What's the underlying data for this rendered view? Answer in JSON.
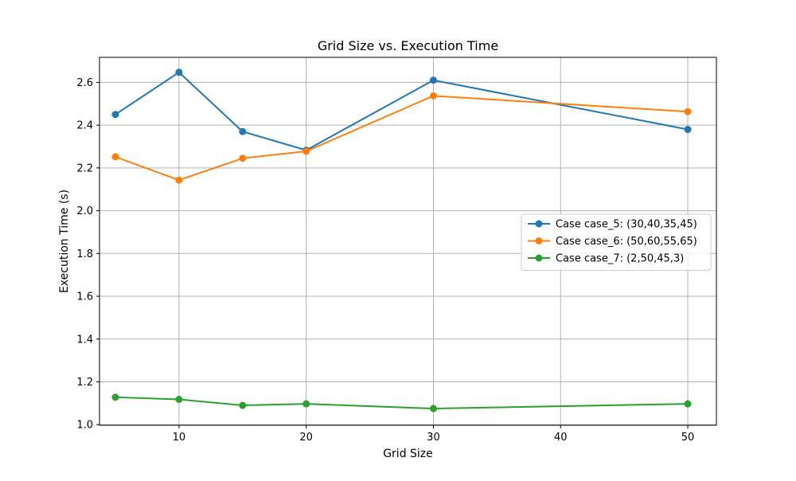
{
  "chart_data": {
    "type": "line",
    "title": "Grid Size vs. Execution Time",
    "xlabel": "Grid Size",
    "ylabel": "Execution Time (s)",
    "x": [
      5,
      10,
      15,
      20,
      30,
      50
    ],
    "xlim": [
      3.75,
      52.25
    ],
    "ylim": [
      0.997,
      2.717
    ],
    "xticks": [
      10,
      20,
      30,
      40,
      50
    ],
    "yticks": [
      1.0,
      1.2,
      1.4,
      1.6,
      1.8,
      2.0,
      2.2,
      2.4,
      2.6
    ],
    "grid": true,
    "legend_position": "center-right",
    "series": [
      {
        "name": "Case case_5: (30,40,35,45)",
        "color": "#1f77b4",
        "values": [
          2.45,
          2.647,
          2.37,
          2.283,
          2.61,
          2.38
        ]
      },
      {
        "name": "Case case_6: (50,60,55,65)",
        "color": "#ff7f0e",
        "values": [
          2.252,
          2.143,
          2.245,
          2.278,
          2.537,
          2.463
        ]
      },
      {
        "name": "Case case_7: (2,50,45,3)",
        "color": "#2ca02c",
        "values": [
          1.128,
          1.118,
          1.09,
          1.097,
          1.075,
          1.097
        ]
      }
    ]
  }
}
